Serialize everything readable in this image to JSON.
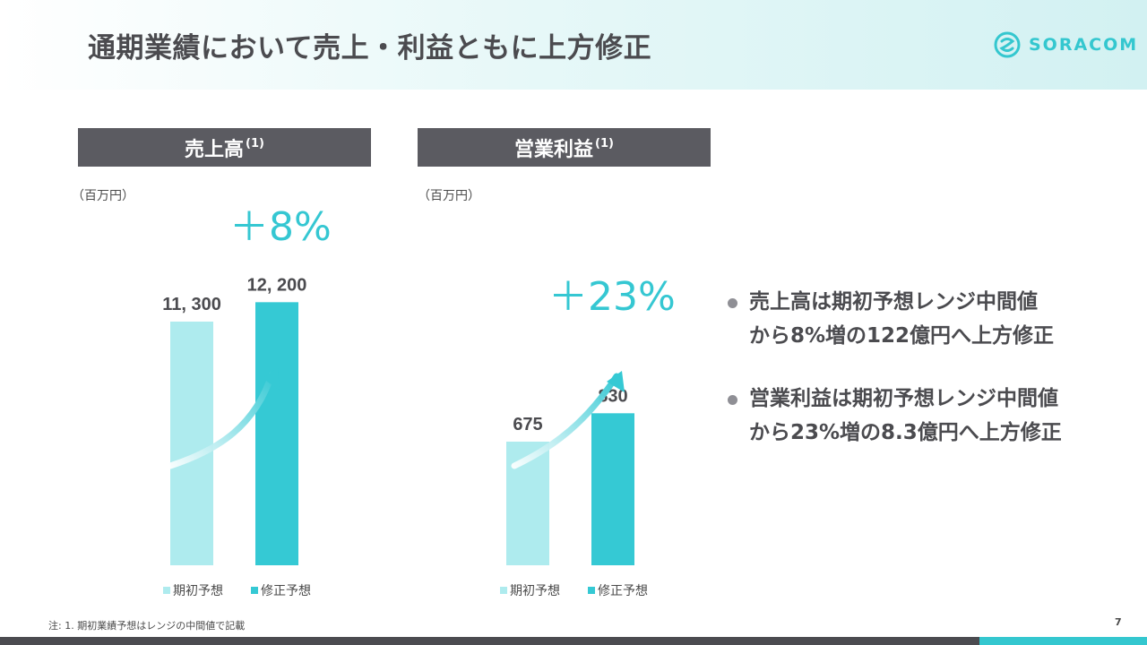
{
  "title": "通期業績において売上・利益ともに上方修正",
  "logo": {
    "text": "SORACOM",
    "icon": "soracom-logo-icon"
  },
  "colors": {
    "forecast": "#aeebee",
    "revised": "#35c9d4",
    "accent": "#35c7d2",
    "panel": "#5b5b61"
  },
  "panels": [
    {
      "title": "売上高",
      "note": "(1)",
      "unit": "（百万円）",
      "growth": "＋8%"
    },
    {
      "title": "営業利益",
      "note": "(1)",
      "unit": "（百万円）",
      "growth": "＋23%"
    }
  ],
  "chart_data": [
    {
      "type": "bar",
      "categories": [
        "期初予想",
        "修正予想"
      ],
      "values": [
        11300,
        12200
      ],
      "value_labels": [
        "11, 300",
        "12, 200"
      ],
      "colors": [
        "#aeebee",
        "#35c9d4"
      ],
      "title": "売上高",
      "ylabel": "（百万円）",
      "legend": [
        "期初予想",
        "修正予想"
      ],
      "legend_position": "bottom",
      "annotation": "＋8%",
      "grid": false
    },
    {
      "type": "bar",
      "categories": [
        "期初予想",
        "修正予想"
      ],
      "values": [
        675,
        830
      ],
      "value_labels": [
        "675",
        "830"
      ],
      "colors": [
        "#aeebee",
        "#35c9d4"
      ],
      "title": "営業利益",
      "ylabel": "（百万円）",
      "legend": [
        "期初予想",
        "修正予想"
      ],
      "legend_position": "bottom",
      "annotation": "＋23%",
      "grid": false
    }
  ],
  "bullets": [
    {
      "line1": "売上高は期初予想レンジ中間値",
      "line2": "から8%増の122億円へ上方修正"
    },
    {
      "line1": "営業利益は期初予想レンジ中間値",
      "line2": "から23%増の8.3億円へ上方修正"
    }
  ],
  "footnote": "注: 1. 期初業績予想はレンジの中間値で記載",
  "page_number": "7"
}
